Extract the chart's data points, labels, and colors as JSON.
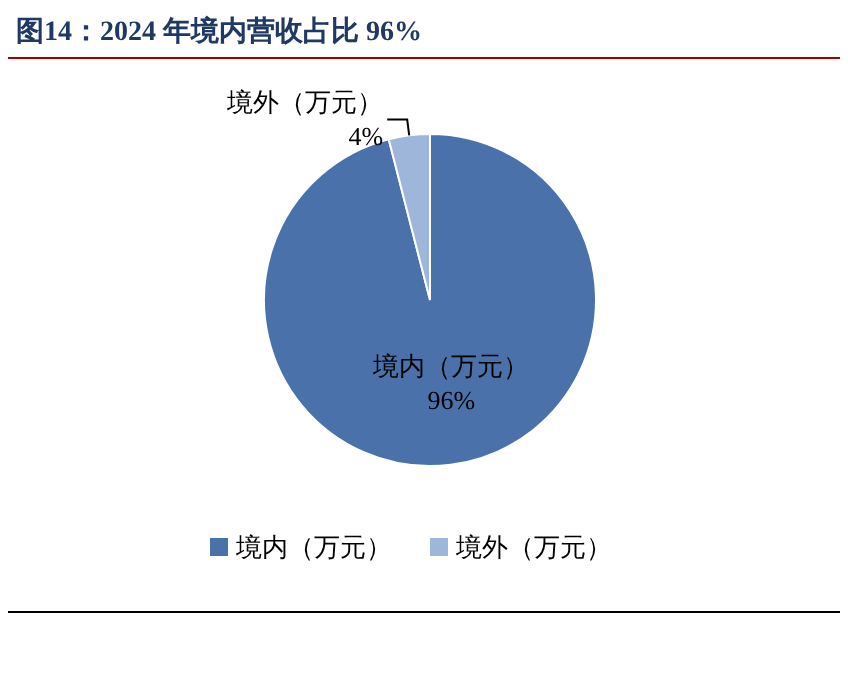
{
  "chart_data": {
    "type": "pie",
    "title": "图14：2024 年境内营收占比 96%",
    "categories": [
      "境内（万元）",
      "境外（万元）"
    ],
    "values": [
      96,
      4
    ],
    "colors": [
      "#4a71a9",
      "#9db6d9"
    ],
    "value_labels": [
      "96%",
      "4%"
    ],
    "legend": "bottom"
  }
}
